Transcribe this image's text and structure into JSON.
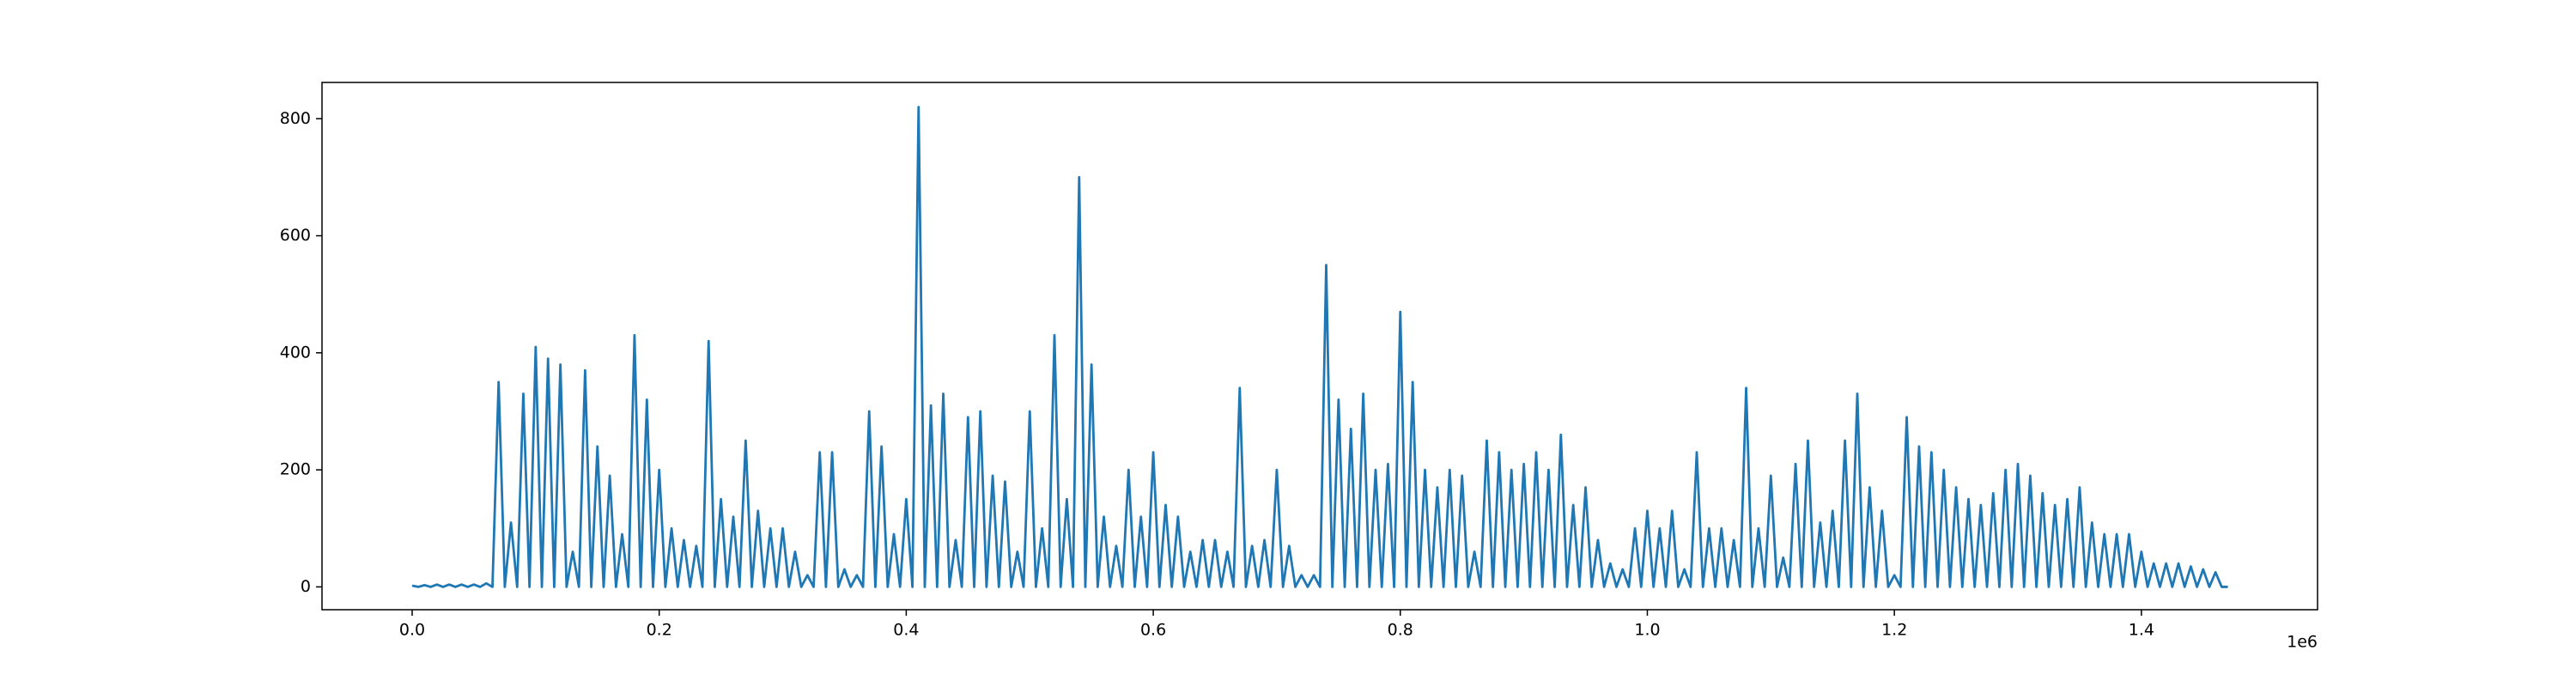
{
  "chart_data": {
    "type": "line",
    "x": [
      0,
      5000,
      10000,
      15000,
      20000,
      25000,
      30000,
      35000,
      40000,
      45000,
      50000,
      55000,
      60000,
      65000,
      70000,
      75000,
      80000,
      85000,
      90000,
      95000,
      100000,
      105000,
      110000,
      115000,
      120000,
      125000,
      130000,
      135000,
      140000,
      145000,
      150000,
      155000,
      160000,
      165000,
      170000,
      175000,
      180000,
      185000,
      190000,
      195000,
      200000,
      205000,
      210000,
      215000,
      220000,
      225000,
      230000,
      235000,
      240000,
      245000,
      250000,
      255000,
      260000,
      265000,
      270000,
      275000,
      280000,
      285000,
      290000,
      295000,
      300000,
      305000,
      310000,
      315000,
      320000,
      325000,
      330000,
      335000,
      340000,
      345000,
      350000,
      355000,
      360000,
      365000,
      370000,
      375000,
      380000,
      385000,
      390000,
      395000,
      400000,
      405000,
      410000,
      415000,
      420000,
      425000,
      430000,
      435000,
      440000,
      445000,
      450000,
      455000,
      460000,
      465000,
      470000,
      475000,
      480000,
      485000,
      490000,
      495000,
      500000,
      505000,
      510000,
      515000,
      520000,
      525000,
      530000,
      535000,
      540000,
      545000,
      550000,
      555000,
      560000,
      565000,
      570000,
      575000,
      580000,
      585000,
      590000,
      595000,
      600000,
      605000,
      610000,
      615000,
      620000,
      625000,
      630000,
      635000,
      640000,
      645000,
      650000,
      655000,
      660000,
      665000,
      670000,
      675000,
      680000,
      685000,
      690000,
      695000,
      700000,
      705000,
      710000,
      715000,
      720000,
      725000,
      730000,
      735000,
      740000,
      745000,
      750000,
      755000,
      760000,
      765000,
      770000,
      775000,
      780000,
      785000,
      790000,
      795000,
      800000,
      805000,
      810000,
      815000,
      820000,
      825000,
      830000,
      835000,
      840000,
      845000,
      850000,
      855000,
      860000,
      865000,
      870000,
      875000,
      880000,
      885000,
      890000,
      895000,
      900000,
      905000,
      910000,
      915000,
      920000,
      925000,
      930000,
      935000,
      940000,
      945000,
      950000,
      955000,
      960000,
      965000,
      970000,
      975000,
      980000,
      985000,
      990000,
      995000,
      1000000,
      1005000,
      1010000,
      1015000,
      1020000,
      1025000,
      1030000,
      1035000,
      1040000,
      1045000,
      1050000,
      1055000,
      1060000,
      1065000,
      1070000,
      1075000,
      1080000,
      1085000,
      1090000,
      1095000,
      1100000,
      1105000,
      1110000,
      1115000,
      1120000,
      1125000,
      1130000,
      1135000,
      1140000,
      1145000,
      1150000,
      1155000,
      1160000,
      1165000,
      1170000,
      1175000,
      1180000,
      1185000,
      1190000,
      1195000,
      1200000,
      1205000,
      1210000,
      1215000,
      1220000,
      1225000,
      1230000,
      1235000,
      1240000,
      1245000,
      1250000,
      1255000,
      1260000,
      1265000,
      1270000,
      1275000,
      1280000,
      1285000,
      1290000,
      1295000,
      1300000,
      1305000,
      1310000,
      1315000,
      1320000,
      1325000,
      1330000,
      1335000,
      1340000,
      1345000,
      1350000,
      1355000,
      1360000,
      1365000,
      1370000,
      1375000,
      1380000,
      1385000,
      1390000,
      1395000,
      1400000,
      1405000,
      1410000,
      1415000,
      1420000,
      1425000,
      1430000,
      1435000,
      1440000,
      1445000,
      1450000,
      1455000,
      1460000,
      1465000,
      1470000
    ],
    "series": [
      {
        "color": "#1f77b4",
        "values": [
          2,
          0,
          3,
          0,
          4,
          0,
          4,
          0,
          4,
          0,
          4,
          0,
          6,
          0,
          350,
          0,
          110,
          0,
          330,
          0,
          410,
          0,
          390,
          0,
          380,
          0,
          60,
          0,
          370,
          0,
          240,
          0,
          190,
          0,
          90,
          0,
          430,
          0,
          320,
          0,
          200,
          0,
          100,
          0,
          80,
          0,
          70,
          0,
          420,
          0,
          150,
          0,
          120,
          0,
          250,
          0,
          130,
          0,
          100,
          0,
          100,
          0,
          60,
          0,
          20,
          0,
          230,
          0,
          230,
          0,
          30,
          0,
          20,
          0,
          300,
          0,
          240,
          0,
          90,
          0,
          150,
          0,
          820,
          0,
          310,
          0,
          330,
          0,
          80,
          0,
          290,
          0,
          300,
          0,
          190,
          0,
          180,
          0,
          60,
          0,
          300,
          0,
          100,
          0,
          430,
          0,
          150,
          0,
          700,
          0,
          380,
          0,
          120,
          0,
          70,
          0,
          200,
          0,
          120,
          0,
          230,
          0,
          140,
          0,
          120,
          0,
          60,
          0,
          80,
          0,
          80,
          0,
          60,
          0,
          340,
          0,
          70,
          0,
          80,
          0,
          200,
          0,
          70,
          0,
          20,
          0,
          20,
          0,
          550,
          0,
          320,
          0,
          270,
          0,
          330,
          0,
          200,
          0,
          210,
          0,
          470,
          0,
          350,
          0,
          200,
          0,
          170,
          0,
          200,
          0,
          190,
          0,
          60,
          0,
          250,
          0,
          230,
          0,
          200,
          0,
          210,
          0,
          230,
          0,
          200,
          0,
          260,
          0,
          140,
          0,
          170,
          0,
          80,
          0,
          40,
          0,
          30,
          0,
          100,
          0,
          130,
          0,
          100,
          0,
          130,
          0,
          30,
          0,
          230,
          0,
          100,
          0,
          100,
          0,
          80,
          0,
          340,
          0,
          100,
          0,
          190,
          0,
          50,
          0,
          210,
          0,
          250,
          0,
          110,
          0,
          130,
          0,
          250,
          0,
          330,
          0,
          170,
          0,
          130,
          0,
          20,
          0,
          290,
          0,
          240,
          0,
          230,
          0,
          200,
          0,
          170,
          0,
          150,
          0,
          140,
          0,
          160,
          0,
          200,
          0,
          210,
          0,
          190,
          0,
          160,
          0,
          140,
          0,
          150,
          0,
          170,
          0,
          110,
          0,
          90,
          0,
          90,
          0,
          90,
          0,
          60,
          0,
          40,
          0,
          40,
          0,
          40,
          0,
          35,
          0,
          30,
          0,
          25,
          0,
          0
        ]
      }
    ],
    "xlim": [
      -73000,
      1542600
    ],
    "ylim": [
      -39,
      862
    ],
    "xticks": [
      {
        "value": 0,
        "label": "0.0"
      },
      {
        "value": 200000,
        "label": "0.2"
      },
      {
        "value": 400000,
        "label": "0.4"
      },
      {
        "value": 600000,
        "label": "0.6"
      },
      {
        "value": 800000,
        "label": "0.8"
      },
      {
        "value": 1000000,
        "label": "1.0"
      },
      {
        "value": 1200000,
        "label": "1.2"
      },
      {
        "value": 1400000,
        "label": "1.4"
      }
    ],
    "x_offset_label": "1e6",
    "yticks": [
      0,
      200,
      400,
      600,
      800
    ],
    "grid": false
  }
}
